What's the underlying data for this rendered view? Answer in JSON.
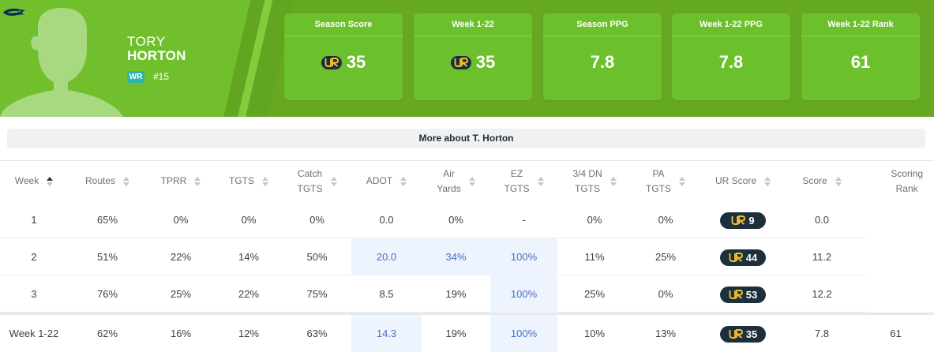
{
  "player": {
    "first_name": "TORY",
    "last_name": "HORTON",
    "position": "WR",
    "jersey": "#15",
    "team_logo_icon": "seahawks-logo-icon"
  },
  "colors": {
    "header_green": "#67a823",
    "card_green": "#6cc02b",
    "ur_navy": "#1c2f3d",
    "ur_yellow": "#f2c12e",
    "highlight_bg": "#eef4fd",
    "highlight_text": "#4a6fc4"
  },
  "cards": [
    {
      "label": "Season Score",
      "value": "35",
      "ur_icon": true
    },
    {
      "label": "Week 1-22",
      "value": "35",
      "ur_icon": true
    },
    {
      "label": "Season PPG",
      "value": "7.8",
      "ur_icon": false
    },
    {
      "label": "Week 1-22 PPG",
      "value": "7.8",
      "ur_icon": false
    },
    {
      "label": "Week 1-22 Rank",
      "value": "61",
      "ur_icon": false
    }
  ],
  "more_about": "More about T. Horton",
  "table": {
    "columns": [
      {
        "label": "Week",
        "sort": "asc"
      },
      {
        "label": "Routes",
        "sort": "none"
      },
      {
        "label": "TPRR",
        "sort": "none"
      },
      {
        "label": "TGTS",
        "sort": "none"
      },
      {
        "label": "Catch TGTS",
        "sort": "none"
      },
      {
        "label": "ADOT",
        "sort": "none"
      },
      {
        "label": "Air Yards",
        "sort": "none"
      },
      {
        "label": "EZ TGTS",
        "sort": "none"
      },
      {
        "label": "3/4 DN TGTS",
        "sort": "none"
      },
      {
        "label": "PA TGTS",
        "sort": "none"
      },
      {
        "label": "UR Score",
        "sort": "none"
      },
      {
        "label": "Score",
        "sort": "none"
      },
      {
        "label": "Scoring Rank",
        "sort": "none"
      }
    ],
    "rows": [
      {
        "week": "1",
        "routes": "65%",
        "tprr": "0%",
        "tgts": "0%",
        "catch_tgts": "0%",
        "adot": "0.0",
        "air_yards": "0%",
        "ez_tgts": "-",
        "dn_tgts": "0%",
        "pa_tgts": "0%",
        "ur_score": "9",
        "score": "0.0",
        "highlights": []
      },
      {
        "week": "2",
        "routes": "51%",
        "tprr": "22%",
        "tgts": "14%",
        "catch_tgts": "50%",
        "adot": "20.0",
        "air_yards": "34%",
        "ez_tgts": "100%",
        "dn_tgts": "11%",
        "pa_tgts": "25%",
        "ur_score": "44",
        "score": "11.2",
        "highlights": [
          "adot",
          "air_yards",
          "ez_tgts"
        ]
      },
      {
        "week": "3",
        "routes": "76%",
        "tprr": "25%",
        "tgts": "22%",
        "catch_tgts": "75%",
        "adot": "8.5",
        "air_yards": "19%",
        "ez_tgts": "100%",
        "dn_tgts": "25%",
        "pa_tgts": "0%",
        "ur_score": "53",
        "score": "12.2",
        "highlights": [
          "ez_tgts"
        ]
      }
    ],
    "total": {
      "week": "Week 1-22",
      "routes": "62%",
      "tprr": "16%",
      "tgts": "12%",
      "catch_tgts": "63%",
      "adot": "14.3",
      "air_yards": "19%",
      "ez_tgts": "100%",
      "dn_tgts": "10%",
      "pa_tgts": "13%",
      "ur_score": "35",
      "score": "7.8",
      "rank": "61",
      "highlights": [
        "adot",
        "ez_tgts"
      ]
    }
  }
}
